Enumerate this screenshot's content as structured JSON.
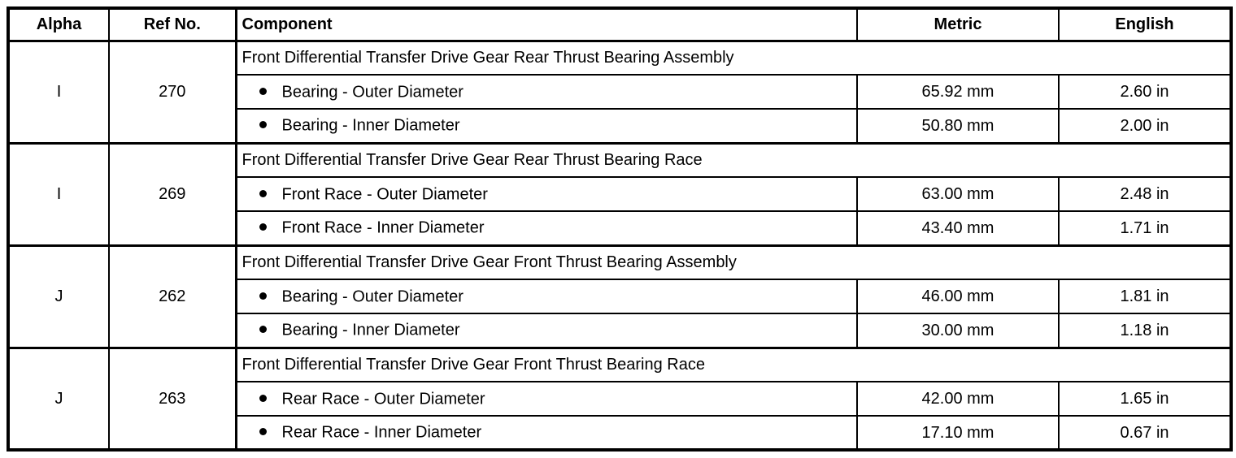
{
  "table": {
    "headers": [
      "Alpha",
      "Ref No.",
      "Component",
      "Metric",
      "English"
    ],
    "colors": {
      "border": "#000000",
      "background": "#ffffff",
      "text": "#000000"
    },
    "bullet_icon": "filled-circle",
    "sections": [
      {
        "alpha": "I",
        "ref_no": "270",
        "heading": "Front Differential Transfer Drive Gear Rear Thrust Bearing Assembly",
        "rows": [
          {
            "component": "Bearing - Outer Diameter",
            "metric": "65.92 mm",
            "english": "2.60 in"
          },
          {
            "component": "Bearing - Inner Diameter",
            "metric": "50.80 mm",
            "english": "2.00 in"
          }
        ]
      },
      {
        "alpha": "I",
        "ref_no": "269",
        "heading": "Front Differential Transfer Drive Gear Rear Thrust Bearing Race",
        "rows": [
          {
            "component": "Front Race - Outer Diameter",
            "metric": "63.00 mm",
            "english": "2.48 in"
          },
          {
            "component": "Front Race - Inner Diameter",
            "metric": "43.40 mm",
            "english": "1.71 in"
          }
        ]
      },
      {
        "alpha": "J",
        "ref_no": "262",
        "heading": "Front Differential Transfer Drive Gear Front Thrust Bearing Assembly",
        "rows": [
          {
            "component": "Bearing - Outer Diameter",
            "metric": "46.00 mm",
            "english": "1.81 in"
          },
          {
            "component": "Bearing - Inner Diameter",
            "metric": "30.00 mm",
            "english": "1.18 in"
          }
        ]
      },
      {
        "alpha": "J",
        "ref_no": "263",
        "heading": "Front Differential Transfer Drive Gear Front Thrust Bearing Race",
        "rows": [
          {
            "component": "Rear Race - Outer Diameter",
            "metric": "42.00 mm",
            "english": "1.65 in"
          },
          {
            "component": "Rear Race - Inner Diameter",
            "metric": "17.10 mm",
            "english": "0.67 in"
          }
        ]
      }
    ]
  }
}
